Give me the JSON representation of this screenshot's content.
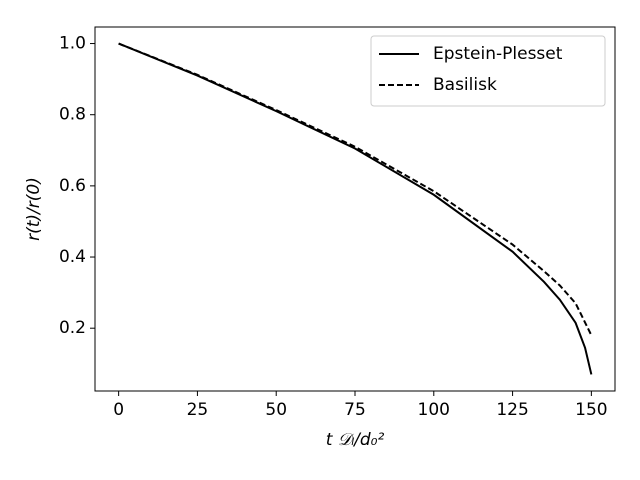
{
  "chart_data": {
    "type": "line",
    "x_label": "t 𝒟ₗ/d₀²",
    "y_label": "r(t)/r(0)",
    "series": [
      {
        "name": "Epstein-Plesset",
        "color": "#000000",
        "dash": "solid",
        "x": [
          0,
          25,
          50,
          75,
          100,
          125,
          135,
          140,
          145,
          148,
          150
        ],
        "values": [
          1.0,
          0.91,
          0.81,
          0.705,
          0.575,
          0.415,
          0.33,
          0.28,
          0.215,
          0.145,
          0.07
        ]
      },
      {
        "name": "Basilisk",
        "color": "#000000",
        "dash": "dashed",
        "x": [
          0,
          25,
          50,
          75,
          100,
          125,
          135,
          140,
          145,
          150
        ],
        "values": [
          1.0,
          0.912,
          0.813,
          0.71,
          0.585,
          0.435,
          0.36,
          0.32,
          0.27,
          0.18
        ]
      }
    ],
    "xlim": [
      -7.5,
      157.5
    ],
    "ylim": [
      0.0235,
      1.0465
    ],
    "xticks": [
      0,
      25,
      50,
      75,
      100,
      125,
      150
    ],
    "yticks": [
      {
        "value": 0.2,
        "label": "0.2"
      },
      {
        "value": 0.4,
        "label": "0.4"
      },
      {
        "value": 0.6,
        "label": "0.6"
      },
      {
        "value": 0.8,
        "label": "0.8"
      },
      {
        "value": 1.0,
        "label": "1.0"
      }
    ],
    "legend": "upper right"
  }
}
